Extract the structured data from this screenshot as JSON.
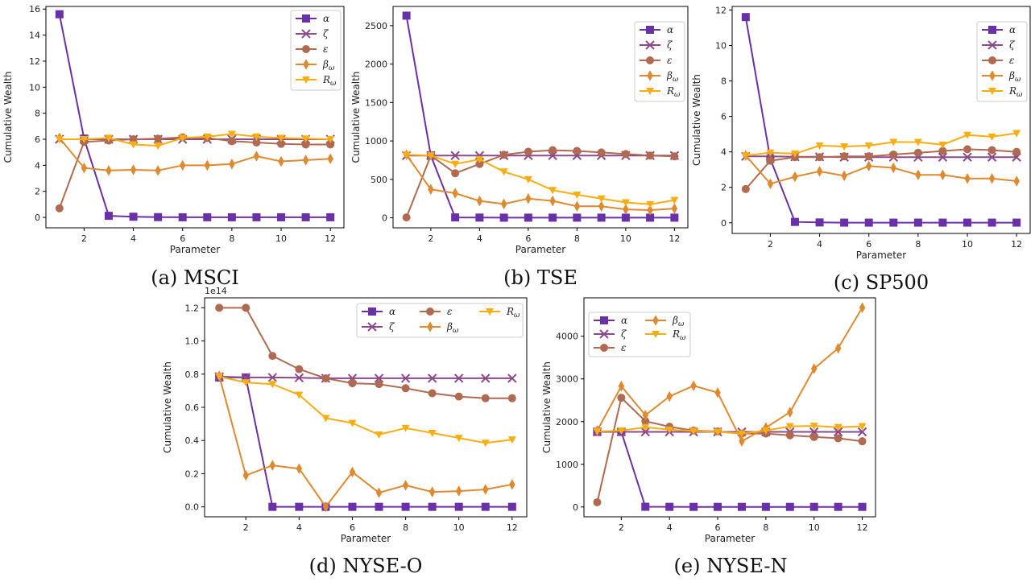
{
  "colors": {
    "alpha": "#6a30a8",
    "zeta": "#8b4a8a",
    "epsilon": "#b16a52",
    "beta": "#dd8a30",
    "R": "#f8ad12"
  },
  "legend_labels": {
    "alpha": "α",
    "zeta": "ζ",
    "epsilon": "ε",
    "beta": "β",
    "beta_sub": "ω",
    "R": "R",
    "R_sub": "ω"
  },
  "chart_data": [
    {
      "type": "line",
      "caption": "(a)  MSCI",
      "xlabel": "Parameter",
      "ylabel": "Cumulative Wealth",
      "x": [
        1,
        2,
        3,
        4,
        5,
        6,
        7,
        8,
        9,
        10,
        11,
        12
      ],
      "xticks": [
        "2",
        "4",
        "6",
        "8",
        "10",
        "12"
      ],
      "yticks": [
        "0",
        "2",
        "4",
        "6",
        "8",
        "10",
        "12",
        "14",
        "16"
      ],
      "ylim": [
        -0.8,
        16.2
      ],
      "legend": "top-right",
      "series": [
        {
          "key": "alpha",
          "values": [
            15.6,
            6.05,
            0.12,
            0.05,
            0.02,
            0.01,
            0.01,
            0.01,
            0.01,
            0.01,
            0.01,
            0.01
          ]
        },
        {
          "key": "zeta",
          "values": [
            6.0,
            6.0,
            6.0,
            6.0,
            6.0,
            6.0,
            6.0,
            6.0,
            6.0,
            6.0,
            6.0,
            6.0
          ]
        },
        {
          "key": "epsilon",
          "values": [
            0.7,
            5.8,
            5.9,
            6.0,
            6.05,
            6.15,
            6.1,
            5.85,
            5.75,
            5.65,
            5.6,
            5.6
          ]
        },
        {
          "key": "beta",
          "values": [
            6.1,
            3.8,
            3.6,
            3.65,
            3.6,
            4.0,
            4.0,
            4.1,
            4.7,
            4.3,
            4.4,
            4.5
          ]
        },
        {
          "key": "R",
          "values": [
            6.0,
            6.0,
            6.1,
            5.6,
            5.5,
            6.1,
            6.2,
            6.4,
            6.2,
            6.1,
            6.05,
            6.0
          ]
        }
      ]
    },
    {
      "type": "line",
      "caption": "(b)  TSE",
      "xlabel": "Parameter",
      "ylabel": "Cumulative Wealth",
      "x": [
        1,
        2,
        3,
        4,
        5,
        6,
        7,
        8,
        9,
        10,
        11,
        12
      ],
      "xticks": [
        "2",
        "4",
        "6",
        "8",
        "10",
        "12"
      ],
      "yticks": [
        "0",
        "500",
        "1000",
        "1500",
        "2000",
        "2500"
      ],
      "ylim": [
        -130,
        2750
      ],
      "legend": "top-right",
      "series": [
        {
          "key": "alpha",
          "values": [
            2630,
            810,
            5,
            3,
            2,
            2,
            2,
            2,
            2,
            2,
            2,
            2
          ]
        },
        {
          "key": "zeta",
          "values": [
            810,
            810,
            810,
            810,
            810,
            810,
            810,
            810,
            810,
            810,
            810,
            810
          ]
        },
        {
          "key": "epsilon",
          "values": [
            5,
            810,
            580,
            700,
            820,
            860,
            880,
            870,
            850,
            830,
            810,
            800
          ]
        },
        {
          "key": "beta",
          "values": [
            820,
            370,
            320,
            220,
            180,
            250,
            220,
            150,
            150,
            110,
            100,
            120
          ]
        },
        {
          "key": "R",
          "values": [
            820,
            810,
            700,
            760,
            600,
            500,
            360,
            300,
            250,
            200,
            175,
            230
          ]
        }
      ]
    },
    {
      "type": "line",
      "caption": "(c)  SP500",
      "xlabel": "Parameter",
      "ylabel": "Cumulative Wealth",
      "x": [
        1,
        2,
        3,
        4,
        5,
        6,
        7,
        8,
        9,
        10,
        11,
        12
      ],
      "xticks": [
        "2",
        "4",
        "6",
        "8",
        "10",
        "12"
      ],
      "yticks": [
        "0",
        "2",
        "4",
        "6",
        "8",
        "10",
        "12"
      ],
      "ylim": [
        -0.6,
        12.2
      ],
      "legend": "top-right",
      "series": [
        {
          "key": "alpha",
          "values": [
            11.6,
            3.6,
            0.05,
            0.02,
            0.01,
            0.01,
            0.01,
            0.01,
            0.01,
            0.01,
            0.01,
            0.01
          ]
        },
        {
          "key": "zeta",
          "values": [
            3.75,
            3.75,
            3.72,
            3.72,
            3.7,
            3.7,
            3.7,
            3.7,
            3.7,
            3.7,
            3.7,
            3.7
          ]
        },
        {
          "key": "epsilon",
          "values": [
            1.9,
            3.5,
            3.7,
            3.7,
            3.75,
            3.75,
            3.85,
            3.95,
            4.05,
            4.15,
            4.1,
            4.0
          ]
        },
        {
          "key": "beta",
          "values": [
            3.8,
            2.2,
            2.6,
            2.9,
            2.65,
            3.2,
            3.1,
            2.7,
            2.7,
            2.5,
            2.5,
            2.35
          ]
        },
        {
          "key": "R",
          "values": [
            3.8,
            3.95,
            3.9,
            4.35,
            4.3,
            4.35,
            4.55,
            4.55,
            4.4,
            4.95,
            4.85,
            5.05
          ]
        }
      ]
    },
    {
      "type": "line",
      "caption": "(d)  NYSE-O",
      "xlabel": "Parameter",
      "ylabel": "Cumulative Wealth",
      "offset_text": "1e14",
      "x": [
        1,
        2,
        3,
        4,
        5,
        6,
        7,
        8,
        9,
        10,
        11,
        12
      ],
      "xticks": [
        "2",
        "4",
        "6",
        "8",
        "10",
        "12"
      ],
      "yticks": [
        "0.0",
        "0.2",
        "0.4",
        "0.6",
        "0.8",
        "1.0",
        "1.2"
      ],
      "ylim": [
        -0.06,
        1.26
      ],
      "legend": "top-right",
      "series": [
        {
          "key": "alpha",
          "values": [
            0.78,
            0.78,
            0.0,
            0.0,
            0.0,
            0.0,
            0.0,
            0.0,
            0.0,
            0.0,
            0.0,
            0.0
          ]
        },
        {
          "key": "zeta",
          "values": [
            0.785,
            0.78,
            0.78,
            0.778,
            0.775,
            0.775,
            0.775,
            0.775,
            0.775,
            0.775,
            0.775,
            0.775
          ]
        },
        {
          "key": "epsilon",
          "values": [
            1.2,
            1.2,
            0.91,
            0.83,
            0.775,
            0.745,
            0.74,
            0.715,
            0.685,
            0.665,
            0.655,
            0.655
          ]
        },
        {
          "key": "beta",
          "values": [
            0.79,
            0.19,
            0.25,
            0.23,
            0.0,
            0.21,
            0.085,
            0.13,
            0.09,
            0.095,
            0.105,
            0.135
          ]
        },
        {
          "key": "R",
          "values": [
            0.785,
            0.75,
            0.74,
            0.675,
            0.535,
            0.505,
            0.435,
            0.475,
            0.445,
            0.415,
            0.385,
            0.405
          ]
        }
      ]
    },
    {
      "type": "line",
      "caption": "(e)  NYSE-N",
      "xlabel": "Parameter",
      "ylabel": "Cumulative Wealth",
      "x": [
        1,
        2,
        3,
        4,
        5,
        6,
        7,
        8,
        9,
        10,
        11,
        12
      ],
      "xticks": [
        "2",
        "4",
        "6",
        "8",
        "10",
        "12"
      ],
      "yticks": [
        "0",
        "1000",
        "2000",
        "3000",
        "4000"
      ],
      "ylim": [
        -230,
        4900
      ],
      "legend": "top-left",
      "series": [
        {
          "key": "alpha",
          "values": [
            1760,
            1760,
            5,
            3,
            2,
            2,
            2,
            2,
            2,
            2,
            2,
            2
          ]
        },
        {
          "key": "zeta",
          "values": [
            1760,
            1760,
            1760,
            1760,
            1760,
            1760,
            1760,
            1760,
            1760,
            1760,
            1760,
            1760
          ]
        },
        {
          "key": "epsilon",
          "values": [
            110,
            2560,
            2010,
            1880,
            1790,
            1770,
            1720,
            1720,
            1680,
            1640,
            1610,
            1540
          ]
        },
        {
          "key": "beta",
          "values": [
            1790,
            2830,
            2150,
            2590,
            2840,
            2680,
            1540,
            1860,
            2220,
            3240,
            3720,
            4670
          ]
        },
        {
          "key": "R",
          "values": [
            1770,
            1790,
            1870,
            1810,
            1780,
            1760,
            1720,
            1790,
            1890,
            1900,
            1870,
            1890
          ]
        }
      ]
    }
  ]
}
